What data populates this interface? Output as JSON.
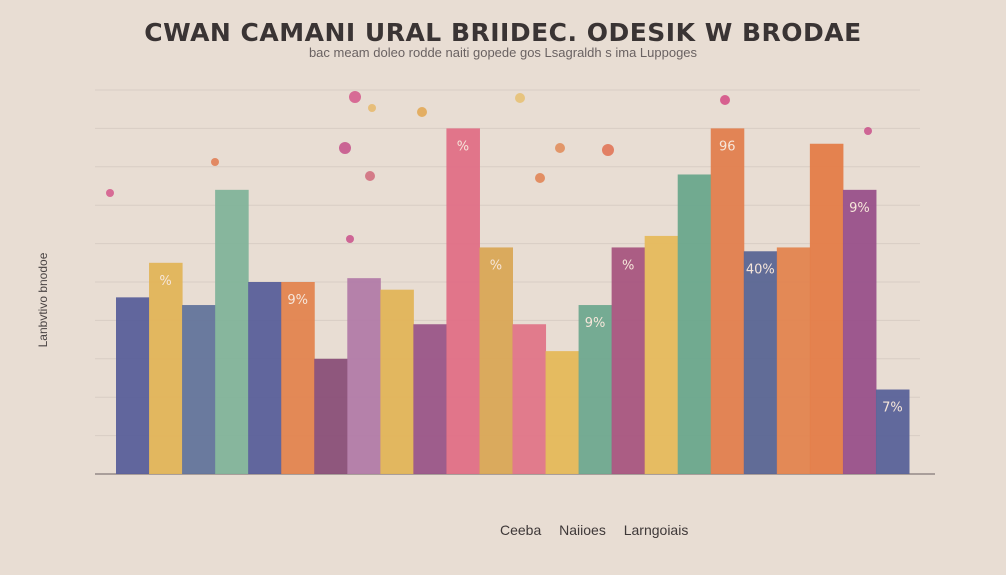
{
  "chart_data": {
    "type": "bar",
    "title": "CWAN CAMANI URAL BRIIDEC. ODESIK W BRODAE",
    "subtitle": "bac meam doleo rodde naiti gopede gos Lsagraldh s ima Luppoges",
    "xlabel": "Ceeba Naiioes Larngoiais",
    "ylabel": "Lanbvtivo bnodoe",
    "ylim": [
      0,
      100
    ],
    "grid": true,
    "values": [
      46,
      55,
      44,
      74,
      50,
      50,
      30,
      51,
      48,
      39,
      90,
      59,
      39,
      32,
      44,
      59,
      62,
      78,
      90,
      58,
      59,
      86,
      74,
      22
    ],
    "colors": [
      "#5a5f9a",
      "#e2b458",
      "#63749b",
      "#82b39a",
      "#5a5f9a",
      "#e3844f",
      "#8a4f78",
      "#b27ba8",
      "#e2b458",
      "#9a5588",
      "#e06f86",
      "#d9a656",
      "#e07588",
      "#e5b85a",
      "#6fa88f",
      "#a8557f",
      "#e6b95c",
      "#6aa68c",
      "#e27e4e",
      "#5a6594",
      "#e3844f",
      "#e47c48",
      "#99508a",
      "#5a6299"
    ],
    "data_labels": [
      "",
      "%",
      "",
      "",
      "",
      "9%",
      "",
      "",
      "",
      "",
      "%",
      "%",
      "",
      "",
      "9%",
      "%",
      "",
      "",
      "96",
      "40%",
      "",
      "",
      "9%",
      "7%"
    ]
  }
}
